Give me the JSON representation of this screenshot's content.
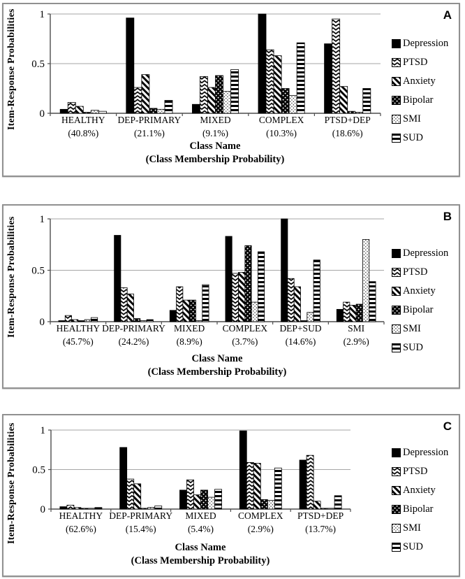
{
  "colors": {
    "bar_black": "#000000",
    "background": "#ffffff",
    "gridline": "#a6a6a6",
    "axis": "#4d4d4d",
    "frame": "#909090"
  },
  "y_axis_title": "Item-Response Probabilities",
  "x_axis_title_line1": "Class Name",
  "x_axis_title_line2": "(Class Membership Probability)",
  "chart_data": [
    {
      "panel_letter": "A",
      "type": "bar",
      "ylabel": "Item-Response Probabilities",
      "xlabel": "Class Name (Class Membership Probability)",
      "ylim": [
        0,
        1
      ],
      "y_ticks": [
        "0",
        "0.5",
        "1"
      ],
      "grid": "horizontal",
      "legend_position": "right",
      "categories": [
        "HEALTHY",
        "DEP-PRIMARY",
        "MIXED",
        "COMPLEX",
        "PTSD+DEP"
      ],
      "class_membership_probabilities": [
        "(40.8%)",
        "(21.1%)",
        "(9.1%)",
        "(10.3%)",
        "(18.6%)"
      ],
      "series": [
        {
          "name": "Depression",
          "pattern": "solid-black",
          "values": [
            0.04,
            0.96,
            0.09,
            1.0,
            0.7
          ]
        },
        {
          "name": "PTSD",
          "pattern": "chevron-scale",
          "values": [
            0.11,
            0.26,
            0.37,
            0.64,
            0.95
          ]
        },
        {
          "name": "Anxiety",
          "pattern": "diagonal-stripe",
          "values": [
            0.07,
            0.39,
            0.26,
            0.58,
            0.27
          ]
        },
        {
          "name": "Bipolar",
          "pattern": "black-white-dots",
          "values": [
            0.01,
            0.05,
            0.38,
            0.25,
            0.02
          ]
        },
        {
          "name": "SMI",
          "pattern": "dot-grid",
          "values": [
            0.03,
            0.04,
            0.22,
            0.18,
            0.01
          ]
        },
        {
          "name": "SUD",
          "pattern": "horizontal-stripe",
          "values": [
            0.02,
            0.13,
            0.44,
            0.71,
            0.25
          ]
        }
      ]
    },
    {
      "panel_letter": "B",
      "type": "bar",
      "ylabel": "Item-Response Probabilities",
      "xlabel": "Class Name (Class Membership Probability)",
      "ylim": [
        0,
        1
      ],
      "y_ticks": [
        "0",
        "0.5",
        "1"
      ],
      "grid": "horizontal",
      "legend_position": "right",
      "categories": [
        "HEALTHY",
        "DEP-PRIMARY",
        "MIXED",
        "COMPLEX",
        "DEP+SUD",
        "SMI"
      ],
      "class_membership_probabilities": [
        "(45.7%)",
        "(24.2%)",
        "(8.9%)",
        "(3.7%)",
        "(14.6%)",
        "(2.9%)"
      ],
      "series": [
        {
          "name": "Depression",
          "pattern": "solid-black",
          "values": [
            0.01,
            0.84,
            0.11,
            0.83,
            1.0,
            0.12
          ]
        },
        {
          "name": "PTSD",
          "pattern": "chevron-scale",
          "values": [
            0.06,
            0.33,
            0.34,
            0.47,
            0.42,
            0.19
          ]
        },
        {
          "name": "Anxiety",
          "pattern": "diagonal-stripe",
          "values": [
            0.02,
            0.27,
            0.21,
            0.48,
            0.34,
            0.16
          ]
        },
        {
          "name": "Bipolar",
          "pattern": "black-white-dots",
          "values": [
            0.01,
            0.03,
            0.21,
            0.74,
            0.01,
            0.17
          ]
        },
        {
          "name": "SMI",
          "pattern": "dot-grid",
          "values": [
            0.02,
            0.01,
            0.01,
            0.19,
            0.09,
            0.8
          ]
        },
        {
          "name": "SUD",
          "pattern": "horizontal-stripe",
          "values": [
            0.04,
            0.02,
            0.36,
            0.68,
            0.6,
            0.39
          ]
        }
      ]
    },
    {
      "panel_letter": "C",
      "type": "bar",
      "ylabel": "Item-Response Probabilities",
      "xlabel": "Class Name (Class Membership Probability)",
      "ylim": [
        0,
        1
      ],
      "y_ticks": [
        "0",
        "0.5",
        "1"
      ],
      "grid": "horizontal",
      "legend_position": "right",
      "categories": [
        "HEALTHY",
        "DEP-PRIMARY",
        "MIXED",
        "COMPLEX",
        "PTSD+DEP"
      ],
      "class_membership_probabilities": [
        "(62.6%)",
        "(15.4%)",
        "(5.4%)",
        "(2.9%)",
        "(13.7%)"
      ],
      "series": [
        {
          "name": "Depression",
          "pattern": "solid-black",
          "values": [
            0.03,
            0.78,
            0.24,
            0.99,
            0.62
          ]
        },
        {
          "name": "PTSD",
          "pattern": "chevron-scale",
          "values": [
            0.05,
            0.38,
            0.37,
            0.59,
            0.68
          ]
        },
        {
          "name": "Anxiety",
          "pattern": "diagonal-stripe",
          "values": [
            0.02,
            0.32,
            0.18,
            0.58,
            0.1
          ]
        },
        {
          "name": "Bipolar",
          "pattern": "black-white-dots",
          "values": [
            0.01,
            0.01,
            0.24,
            0.12,
            0.01
          ]
        },
        {
          "name": "SMI",
          "pattern": "dot-grid",
          "values": [
            0.01,
            0.02,
            0.15,
            0.11,
            0.01
          ]
        },
        {
          "name": "SUD",
          "pattern": "horizontal-stripe",
          "values": [
            0.02,
            0.04,
            0.25,
            0.52,
            0.17
          ]
        }
      ]
    }
  ]
}
